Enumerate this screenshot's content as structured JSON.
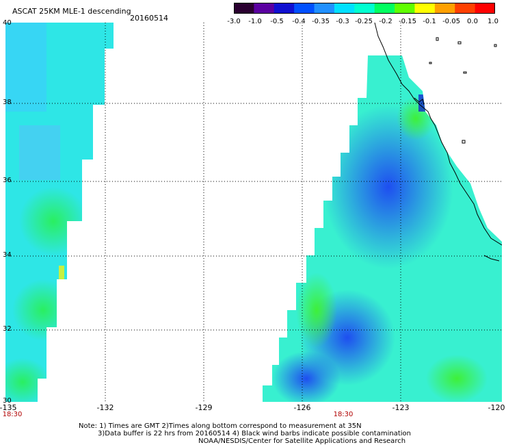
{
  "header": {
    "title": "ASCAT 25KM MLE-1 descending",
    "date": "20160514"
  },
  "colorbar": {
    "ticks": [
      "-3.0",
      "-1.0",
      "-0.5",
      "-0.4",
      "-0.35",
      "-0.3",
      "-0.25",
      "-0.2",
      "-0.15",
      "-0.1",
      "-0.05",
      "0.0",
      "1.0"
    ],
    "colors": [
      "#2a0030",
      "#5a00a0",
      "#1010d0",
      "#0050ff",
      "#2090ff",
      "#00e0ff",
      "#00ffd0",
      "#00ff60",
      "#60ff00",
      "#ffff00",
      "#ffa000",
      "#ff4000",
      "#ff0000"
    ]
  },
  "map": {
    "lat_labels": [
      "40",
      "38",
      "36",
      "34",
      "32",
      "30"
    ],
    "lon_labels": [
      "-135",
      "-132",
      "-129",
      "-126",
      "-123",
      "-120"
    ],
    "time_labels": [
      "18:30",
      "18:30"
    ],
    "field_colors": {
      "west_swath": "#2ee6e6",
      "west_swath_green": "#2aef70",
      "east_swath": "#38f0d0",
      "east_core_blue": "#2c62f0",
      "east_green": "#5cf052",
      "coast": "#000000",
      "grid": "#000000"
    }
  },
  "notes": {
    "line1": "Note: 1) Times are GMT 2)Times along bottom correspond to measurement at 35N",
    "line2": "3)Data buffer is 22 hrs from 20160514 4) Black wind barbs indicate possible contamination",
    "line3": "NOAA/NESDIS/Center for Satellite Applications and Research"
  }
}
